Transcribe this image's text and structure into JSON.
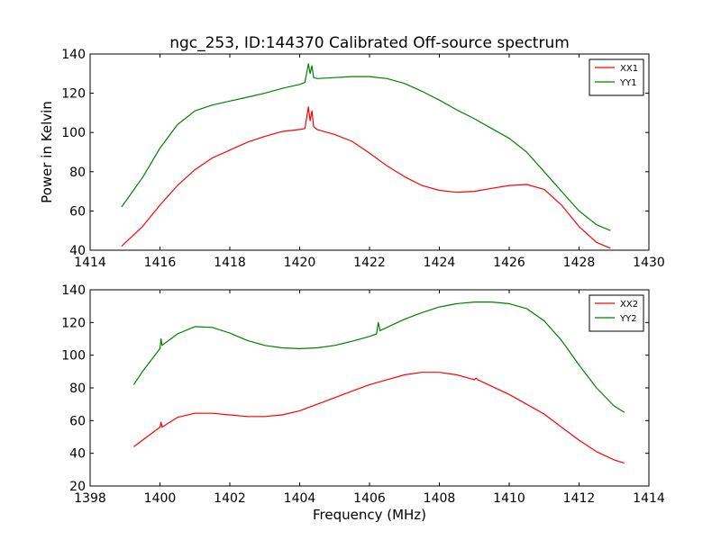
{
  "chart_data": [
    {
      "type": "line",
      "title": "ngc_253, ID:144370 Calibrated Off-source spectrum",
      "xlabel": "",
      "ylabel": "Power in Kelvin",
      "xlim": [
        1414,
        1430
      ],
      "ylim": [
        40,
        140
      ],
      "xticks": [
        1414,
        1416,
        1418,
        1420,
        1422,
        1424,
        1426,
        1428,
        1430
      ],
      "yticks": [
        40,
        60,
        80,
        100,
        120,
        140
      ],
      "grid": false,
      "legend_position": "top-right",
      "series": [
        {
          "name": "XX1",
          "color": "#ff0000",
          "x": [
            1414.9,
            1415.5,
            1416.0,
            1416.5,
            1417.0,
            1417.5,
            1418.0,
            1418.5,
            1419.0,
            1419.5,
            1420.0,
            1420.15,
            1420.25,
            1420.3,
            1420.35,
            1420.4,
            1420.5,
            1421.0,
            1421.5,
            1422.0,
            1422.5,
            1423.0,
            1423.5,
            1424.0,
            1424.5,
            1425.0,
            1425.5,
            1426.0,
            1426.5,
            1427.0,
            1427.5,
            1428.0,
            1428.5,
            1428.9
          ],
          "y": [
            42,
            52,
            63,
            73,
            81,
            87,
            91,
            95,
            98,
            100.5,
            101.5,
            102,
            113,
            106,
            111,
            103,
            101.5,
            99,
            95.5,
            89.5,
            83,
            77.5,
            73,
            70.5,
            69.5,
            70,
            71.5,
            73,
            73.5,
            71,
            63,
            52,
            44,
            41
          ]
        },
        {
          "name": "YY1",
          "color": "#008000",
          "x": [
            1414.9,
            1415.5,
            1416.0,
            1416.5,
            1417.0,
            1417.5,
            1418.0,
            1418.5,
            1419.0,
            1419.5,
            1420.0,
            1420.15,
            1420.25,
            1420.3,
            1420.35,
            1420.4,
            1420.5,
            1421.0,
            1421.5,
            1422.0,
            1422.5,
            1423.0,
            1423.5,
            1424.0,
            1424.5,
            1425.0,
            1425.5,
            1426.0,
            1426.5,
            1427.0,
            1427.5,
            1428.0,
            1428.5,
            1428.9
          ],
          "y": [
            62,
            77,
            92,
            104,
            111,
            114,
            116,
            118,
            120,
            122.5,
            124.5,
            125.5,
            135,
            130,
            134,
            128,
            127.5,
            128,
            128.5,
            128.5,
            127.5,
            125,
            121,
            116.5,
            111.5,
            107,
            102,
            97,
            90,
            80,
            70,
            60,
            53,
            50
          ]
        }
      ]
    },
    {
      "type": "line",
      "title": "",
      "xlabel": "Frequency (MHz)",
      "ylabel": "",
      "xlim": [
        1398,
        1414
      ],
      "ylim": [
        20,
        140
      ],
      "xticks": [
        1398,
        1400,
        1402,
        1404,
        1406,
        1408,
        1410,
        1412,
        1414
      ],
      "yticks": [
        20,
        40,
        60,
        80,
        100,
        120,
        140
      ],
      "grid": false,
      "legend_position": "top-right",
      "series": [
        {
          "name": "XX2",
          "color": "#ff0000",
          "x": [
            1399.25,
            1399.5,
            1400.0,
            1400.03,
            1400.06,
            1400.5,
            1401.0,
            1401.5,
            1402.0,
            1402.5,
            1403.0,
            1403.5,
            1404.0,
            1404.5,
            1405.0,
            1405.5,
            1406.0,
            1406.5,
            1407.0,
            1407.5,
            1408.0,
            1408.5,
            1409.0,
            1409.05,
            1409.1,
            1409.5,
            1410.0,
            1410.5,
            1411.0,
            1411.5,
            1412.0,
            1412.5,
            1413.0,
            1413.3
          ],
          "y": [
            44,
            48,
            56,
            59,
            56,
            62,
            64.5,
            64.5,
            63.5,
            62.5,
            62.5,
            63.5,
            66,
            70,
            74,
            78,
            82,
            85,
            88,
            89.5,
            89.5,
            88,
            85,
            86,
            85,
            81,
            76,
            70,
            64,
            56,
            48,
            41,
            36,
            34
          ]
        },
        {
          "name": "YY2",
          "color": "#008000",
          "x": [
            1399.25,
            1399.5,
            1400.0,
            1400.03,
            1400.06,
            1400.5,
            1401.0,
            1401.5,
            1402.0,
            1402.5,
            1403.0,
            1403.5,
            1404.0,
            1404.5,
            1405.0,
            1405.5,
            1406.0,
            1406.2,
            1406.25,
            1406.3,
            1406.5,
            1407.0,
            1407.5,
            1408.0,
            1408.5,
            1409.0,
            1409.5,
            1410.0,
            1410.5,
            1411.0,
            1411.5,
            1412.0,
            1412.5,
            1413.0,
            1413.3
          ],
          "y": [
            82,
            90,
            104,
            110,
            106,
            113,
            117.5,
            117,
            113.5,
            109,
            106,
            104.5,
            104,
            104.5,
            106,
            108.5,
            111.5,
            113,
            120,
            115,
            117,
            122,
            126,
            129.5,
            131.5,
            132.5,
            132.5,
            131.5,
            128.5,
            121,
            109,
            94,
            80,
            69,
            65
          ]
        }
      ]
    }
  ]
}
